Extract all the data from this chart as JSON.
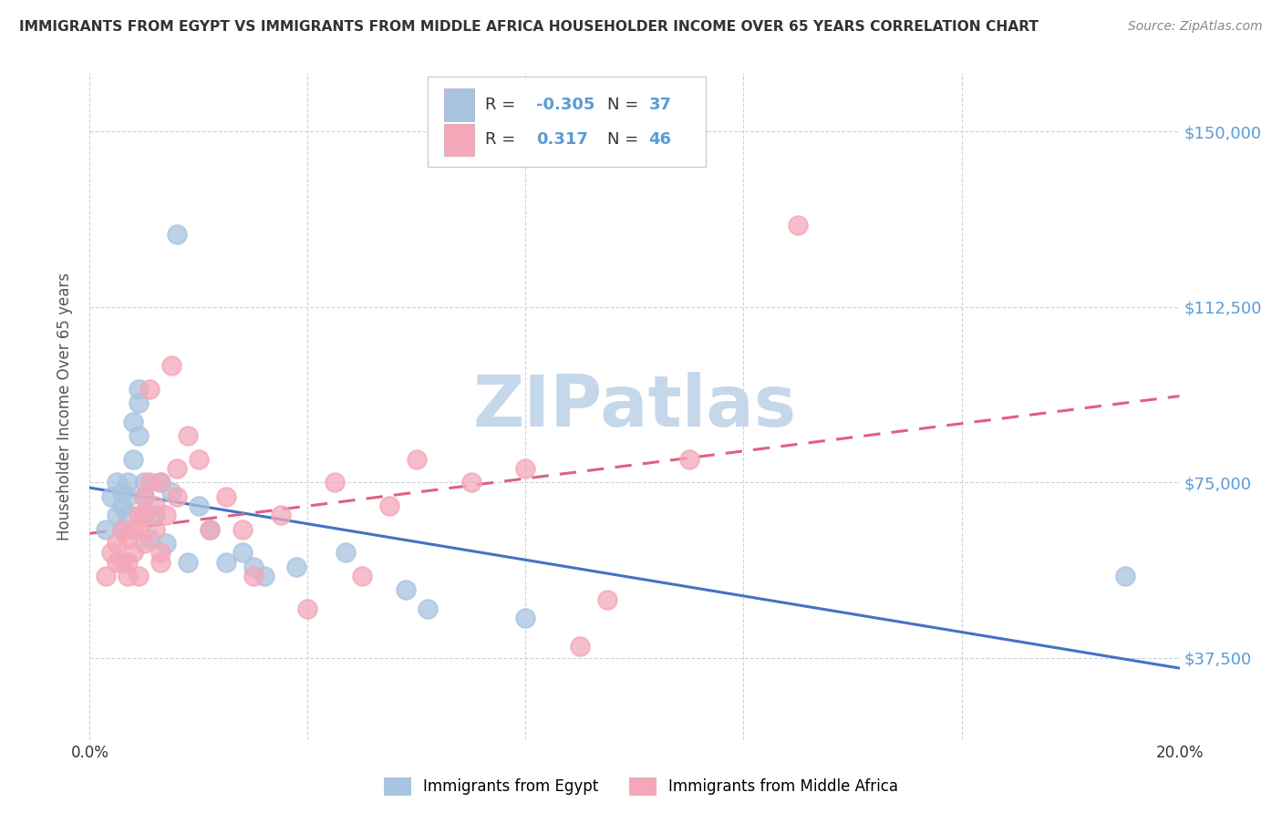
{
  "title": "IMMIGRANTS FROM EGYPT VS IMMIGRANTS FROM MIDDLE AFRICA HOUSEHOLDER INCOME OVER 65 YEARS CORRELATION CHART",
  "source": "Source: ZipAtlas.com",
  "ylabel": "Householder Income Over 65 years",
  "xlim": [
    0.0,
    0.2
  ],
  "ylim": [
    20000,
    162500
  ],
  "yticks": [
    37500,
    75000,
    112500,
    150000
  ],
  "ytick_labels": [
    "$37,500",
    "$75,000",
    "$112,500",
    "$150,000"
  ],
  "xticks": [
    0.0,
    0.04,
    0.08,
    0.12,
    0.16,
    0.2
  ],
  "xtick_labels": [
    "0.0%",
    "",
    "",
    "",
    "",
    "20.0%"
  ],
  "color_egypt": "#a8c4e0",
  "color_africa": "#f4a7b9",
  "line_egypt": "#4472c4",
  "line_africa": "#e06080",
  "R_egypt": -0.305,
  "N_egypt": 37,
  "R_africa": 0.317,
  "N_africa": 46,
  "egypt_x": [
    0.003,
    0.004,
    0.005,
    0.005,
    0.006,
    0.006,
    0.006,
    0.007,
    0.007,
    0.007,
    0.008,
    0.008,
    0.009,
    0.009,
    0.009,
    0.01,
    0.01,
    0.01,
    0.011,
    0.012,
    0.013,
    0.014,
    0.015,
    0.016,
    0.018,
    0.02,
    0.022,
    0.025,
    0.028,
    0.03,
    0.032,
    0.038,
    0.047,
    0.058,
    0.062,
    0.08,
    0.19
  ],
  "egypt_y": [
    65000,
    72000,
    75000,
    68000,
    73000,
    70000,
    65000,
    75000,
    72000,
    68000,
    80000,
    88000,
    95000,
    92000,
    85000,
    75000,
    72000,
    68000,
    63000,
    68000,
    75000,
    62000,
    73000,
    128000,
    58000,
    70000,
    65000,
    58000,
    60000,
    57000,
    55000,
    57000,
    60000,
    52000,
    48000,
    46000,
    55000
  ],
  "africa_x": [
    0.003,
    0.004,
    0.005,
    0.005,
    0.006,
    0.006,
    0.007,
    0.007,
    0.007,
    0.008,
    0.008,
    0.009,
    0.009,
    0.009,
    0.01,
    0.01,
    0.01,
    0.011,
    0.011,
    0.012,
    0.012,
    0.013,
    0.013,
    0.013,
    0.014,
    0.015,
    0.016,
    0.016,
    0.018,
    0.02,
    0.022,
    0.025,
    0.028,
    0.03,
    0.035,
    0.04,
    0.045,
    0.05,
    0.055,
    0.06,
    0.07,
    0.08,
    0.09,
    0.095,
    0.11,
    0.13
  ],
  "africa_y": [
    55000,
    60000,
    62000,
    58000,
    65000,
    58000,
    63000,
    58000,
    55000,
    65000,
    60000,
    68000,
    65000,
    55000,
    72000,
    68000,
    62000,
    95000,
    75000,
    65000,
    70000,
    75000,
    60000,
    58000,
    68000,
    100000,
    78000,
    72000,
    85000,
    80000,
    65000,
    72000,
    65000,
    55000,
    68000,
    48000,
    75000,
    55000,
    70000,
    80000,
    75000,
    78000,
    40000,
    50000,
    80000,
    130000
  ],
  "watermark": "ZIPatlas",
  "watermark_color": "#c5d8ea",
  "background_color": "#ffffff",
  "grid_color": "#c8d4dc",
  "title_color": "#333333",
  "ylabel_color": "#555555",
  "ytick_color": "#5b9bd5",
  "xtick_color": "#333333",
  "legend_R_color": "#5b9bd5",
  "legend_N_color": "#5b9bd5",
  "legend_label_color": "#333333"
}
